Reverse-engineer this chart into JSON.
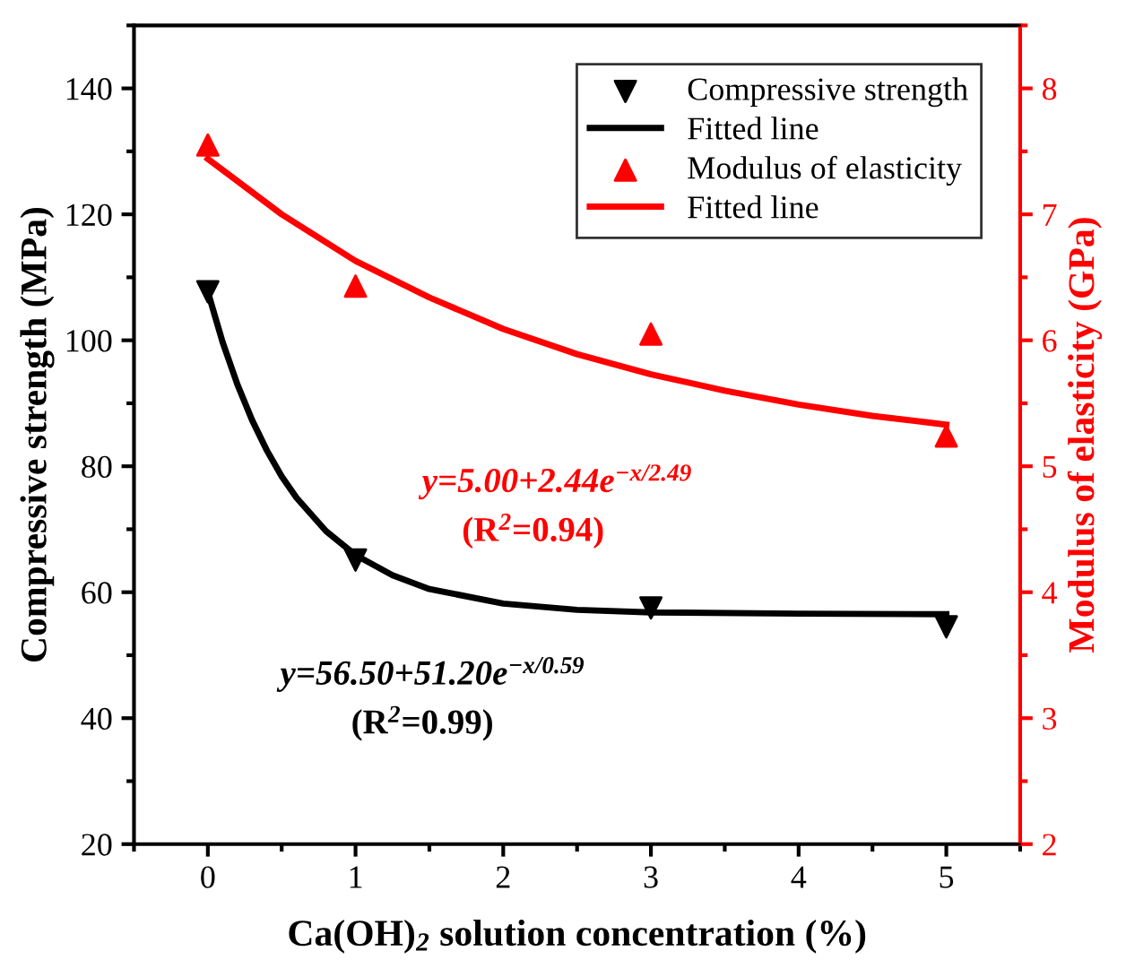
{
  "chart_data": {
    "type": "scatter",
    "xlabel": "Ca(OH)$_{2}$ solution concentration (%)",
    "ylabel": "Compressive strength (MPa)",
    "y2label": "Modulus of elasticity (GPa)",
    "xlim": [
      -0.5,
      5.5
    ],
    "xticks": [
      0,
      1,
      2,
      3,
      4,
      5
    ],
    "ylim": [
      20,
      150
    ],
    "yticks": [
      20,
      40,
      60,
      80,
      100,
      120,
      140
    ],
    "y2lim": [
      2,
      8.5
    ],
    "y2ticks": [
      2,
      3,
      4,
      5,
      6,
      7,
      8
    ],
    "legend": "top right",
    "grid": false,
    "series": [
      {
        "name": "Compressive strength",
        "marker": "triangle_down",
        "color": "#000000",
        "x": [
          0,
          1,
          3,
          5
        ],
        "values": [
          107.7,
          65.1,
          57.5,
          54.5
        ]
      },
      {
        "name": "Fitted line",
        "type": "line",
        "color": "#000000",
        "x": [
          0,
          0.1,
          0.2,
          0.3,
          0.4,
          0.5,
          0.6,
          0.8,
          1,
          1.25,
          1.5,
          2,
          2.5,
          3,
          4,
          5
        ],
        "values": [
          107.7,
          99.7,
          93.0,
          87.3,
          82.5,
          78.4,
          75.0,
          69.7,
          65.9,
          62.7,
          60.5,
          58.2,
          57.2,
          56.8,
          56.6,
          56.5
        ]
      },
      {
        "name": "Modulus of elasticity",
        "marker": "triangle",
        "color": "#ff0000",
        "axis": "y2",
        "x": [
          0,
          1,
          3,
          5
        ],
        "values": [
          7.55,
          6.43,
          6.05,
          5.24
        ]
      },
      {
        "name": "Fitted line",
        "type": "line",
        "color": "#ff0000",
        "axis": "y2",
        "x": [
          0,
          0.5,
          1,
          1.5,
          2,
          2.5,
          3,
          3.5,
          4,
          4.5,
          5
        ],
        "values": [
          7.44,
          7.0,
          6.63,
          6.34,
          6.09,
          5.89,
          5.73,
          5.6,
          5.49,
          5.4,
          5.33
        ]
      }
    ],
    "annotations": [
      "y=56.50+51.20e$^{−x/0.59}$",
      "(R$^{2}$=0.99)",
      "y=5.00+2.44e$^{−x/2.49}$",
      "(R$^{2}$=0.94)"
    ]
  }
}
